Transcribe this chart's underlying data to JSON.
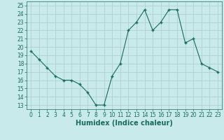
{
  "x": [
    0,
    1,
    2,
    3,
    4,
    5,
    6,
    7,
    8,
    9,
    10,
    11,
    12,
    13,
    14,
    15,
    16,
    17,
    18,
    19,
    20,
    21,
    22,
    23
  ],
  "y": [
    19.5,
    18.5,
    17.5,
    16.5,
    16,
    16,
    15.5,
    14.5,
    13,
    13,
    16.5,
    18,
    22,
    23,
    24.5,
    22,
    23,
    24.5,
    24.5,
    20.5,
    21,
    18,
    17.5,
    17
  ],
  "line_color": "#1a6b5a",
  "marker": "+",
  "marker_size": 3.5,
  "background_color": "#c8eaea",
  "grid_color": "#b0d0d0",
  "xlabel": "Humidex (Indice chaleur)",
  "xlim": [
    -0.5,
    23.5
  ],
  "ylim": [
    12.5,
    25.5
  ],
  "yticks": [
    13,
    14,
    15,
    16,
    17,
    18,
    19,
    20,
    21,
    22,
    23,
    24,
    25
  ],
  "xticks": [
    0,
    1,
    2,
    3,
    4,
    5,
    6,
    7,
    8,
    9,
    10,
    11,
    12,
    13,
    14,
    15,
    16,
    17,
    18,
    19,
    20,
    21,
    22,
    23
  ],
  "xtick_labels": [
    "0",
    "1",
    "2",
    "3",
    "4",
    "5",
    "6",
    "7",
    "8",
    "9",
    "10",
    "11",
    "12",
    "13",
    "14",
    "15",
    "16",
    "17",
    "18",
    "19",
    "20",
    "21",
    "22",
    "23"
  ],
  "xlabel_fontsize": 7,
  "tick_fontsize": 5.5,
  "linewidth": 0.8,
  "marker_linewidth": 1.0
}
